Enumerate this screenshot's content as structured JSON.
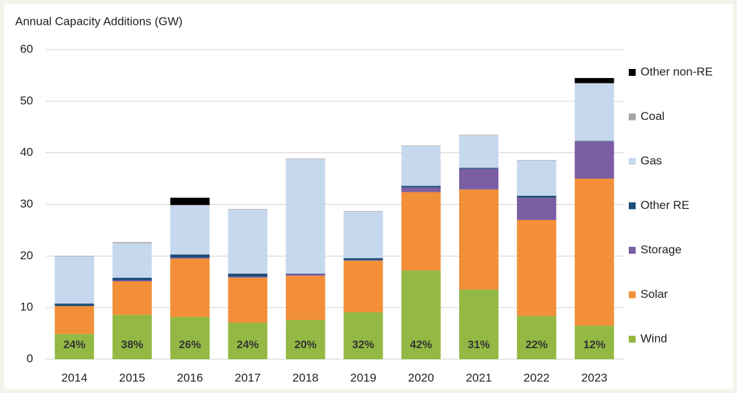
{
  "chart_data": {
    "type": "stacked_bar",
    "title": "Annual  Capacity Additions (GW)",
    "categories": [
      "2014",
      "2015",
      "2016",
      "2017",
      "2018",
      "2019",
      "2020",
      "2021",
      "2022",
      "2023"
    ],
    "series": [
      {
        "name": "Wind",
        "color": "#93b843",
        "values": [
          4.9,
          8.6,
          8.2,
          7.1,
          7.6,
          9.1,
          17.2,
          13.5,
          8.4,
          6.5
        ]
      },
      {
        "name": "Solar",
        "color": "#f28f38",
        "values": [
          5.4,
          6.5,
          11.3,
          8.7,
          8.6,
          10.0,
          15.2,
          19.4,
          18.6,
          28.5
        ]
      },
      {
        "name": "Storage",
        "color": "#7b5ea3",
        "values": [
          0,
          0.2,
          0.2,
          0.2,
          0.3,
          0.1,
          0.9,
          4.0,
          4.3,
          7.2
        ]
      },
      {
        "name": "Other RE",
        "color": "#1f4e79",
        "values": [
          0.5,
          0.5,
          0.6,
          0.6,
          0.1,
          0.4,
          0.3,
          0.2,
          0.4,
          0.1
        ]
      },
      {
        "name": "Gas",
        "color": "#c6d8ee",
        "values": [
          9.1,
          6.7,
          9.5,
          12.4,
          22.2,
          9.0,
          7.7,
          6.3,
          6.8,
          11.2
        ]
      },
      {
        "name": "Coal",
        "color": "#a6a6a6",
        "values": [
          0.1,
          0.2,
          0.1,
          0.1,
          0.1,
          0.1,
          0.1,
          0.1,
          0.1,
          0
        ]
      },
      {
        "name": "Other non-RE",
        "color": "#000000",
        "values": [
          0,
          0,
          1.4,
          0,
          0,
          0,
          0,
          0,
          0,
          1.0
        ]
      }
    ],
    "annotations": [
      "24%",
      "38%",
      "26%",
      "24%",
      "20%",
      "32%",
      "42%",
      "31%",
      "22%",
      "12%"
    ],
    "ylim": [
      0,
      60
    ],
    "yticks": [
      0,
      10,
      20,
      30,
      40,
      50,
      60
    ],
    "grid": true,
    "legend": "right"
  }
}
